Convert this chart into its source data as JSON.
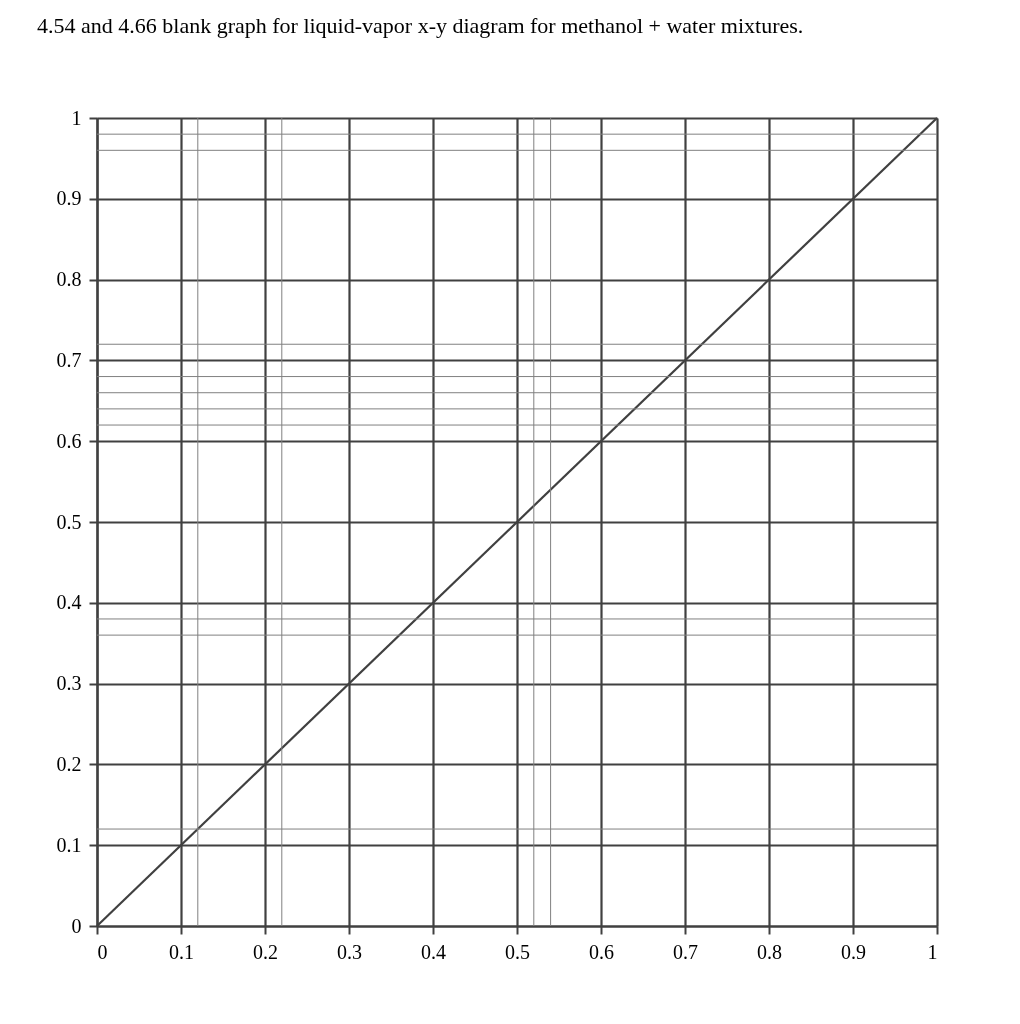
{
  "chart_data": {
    "type": "line",
    "title": "4.54 and 4.66  blank graph for liquid-vapor x-y diagram for methanol + water mixtures.",
    "x": [
      0,
      1
    ],
    "series": [
      {
        "color": "#404040",
        "values": [
          0,
          1
        ]
      }
    ],
    "xlim": [
      0,
      1
    ],
    "ylim": [
      0,
      1
    ],
    "xticks": [
      0,
      0.1,
      0.2,
      0.3,
      0.4,
      0.5,
      0.6,
      0.7,
      0.8,
      0.9,
      1
    ],
    "yticks": [
      0,
      0.1,
      0.2,
      0.3,
      0.4,
      0.5,
      0.6,
      0.7,
      0.8,
      0.9,
      1
    ],
    "grid": true,
    "marker": "none",
    "line_style": "solid",
    "ref_lines": [
      {
        "axis": "x",
        "value": 0.12,
        "color": "#808080"
      },
      {
        "axis": "x",
        "value": 0.22,
        "color": "#808080"
      },
      {
        "axis": "x",
        "value": 0.52,
        "color": "#808080"
      },
      {
        "axis": "x",
        "value": 0.54,
        "color": "#808080"
      },
      {
        "axis": "y",
        "value": 0.12,
        "color": "#808080"
      },
      {
        "axis": "y",
        "value": 0.36,
        "color": "#808080"
      },
      {
        "axis": "y",
        "value": 0.38,
        "color": "#808080"
      },
      {
        "axis": "y",
        "value": 0.62,
        "color": "#808080"
      },
      {
        "axis": "y",
        "value": 0.64,
        "color": "#808080"
      },
      {
        "axis": "y",
        "value": 0.66,
        "color": "#808080"
      },
      {
        "axis": "y",
        "value": 0.68,
        "color": "#808080"
      },
      {
        "axis": "y",
        "value": 0.72,
        "color": "#808080"
      },
      {
        "axis": "y",
        "value": 0.96,
        "color": "#808080"
      },
      {
        "axis": "y",
        "value": 0.98,
        "color": "#808080"
      }
    ]
  }
}
